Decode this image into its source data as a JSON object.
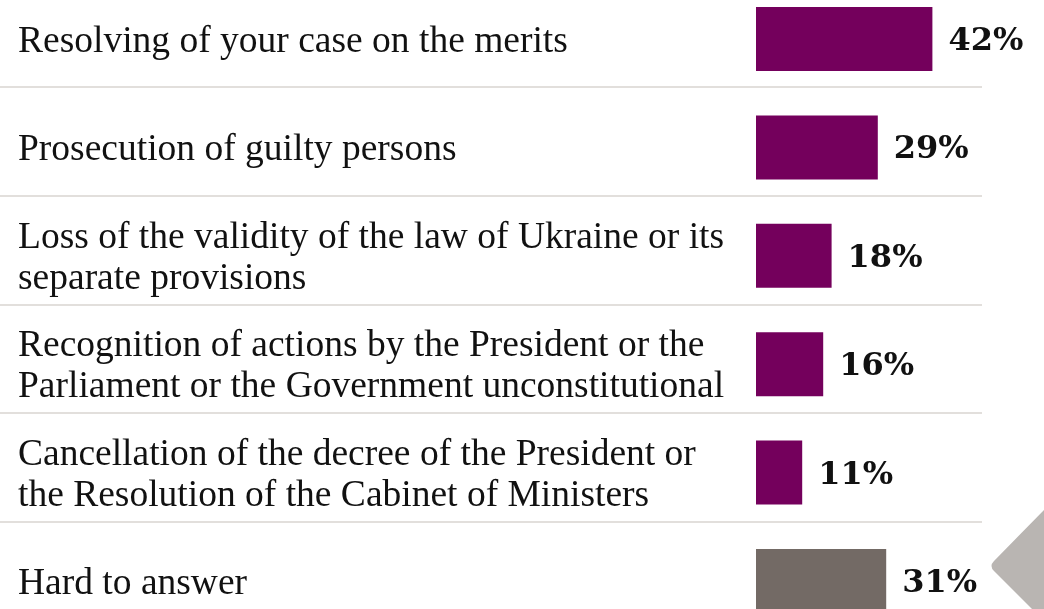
{
  "chart_data": {
    "type": "bar",
    "orientation": "horizontal",
    "categories": [
      "Resolving of your case on the merits",
      "Prosecution of guilty persons",
      "Loss of the validity of the law of Ukraine or its separate provisions",
      "Recognition of actions by the President or the Parliament or the Government unconstitutional",
      "Cancellation of the decree of the President or the Resolution of the Cabinet of Ministers",
      "Hard to answer"
    ],
    "values": [
      42,
      29,
      18,
      16,
      11,
      31
    ],
    "colors": [
      "#74005c",
      "#74005c",
      "#74005c",
      "#74005c",
      "#74005c",
      "#736a65"
    ],
    "value_labels": [
      "42%",
      "29%",
      "18%",
      "16%",
      "11%",
      "31%"
    ],
    "grid": "y",
    "tick_labels": "y"
  }
}
